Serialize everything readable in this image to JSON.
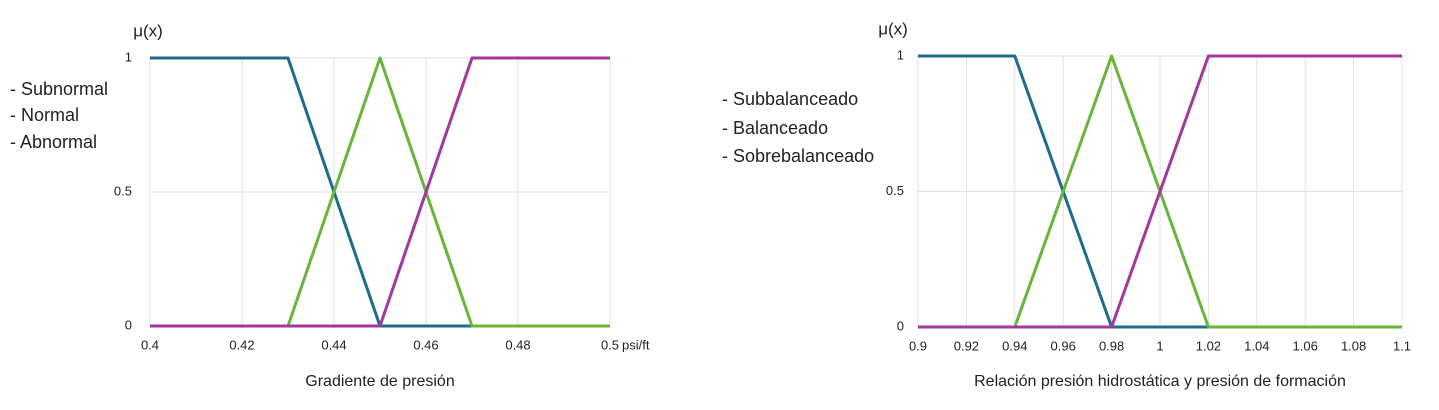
{
  "chart_data": [
    {
      "type": "line",
      "y_label": "μ(x)",
      "x_unit": "psi/ft",
      "x_label": "Gradiente de presión",
      "xlim": [
        0.4,
        0.5
      ],
      "xticks": [
        0.4,
        0.42,
        0.44,
        0.46,
        0.48,
        0.5
      ],
      "ylim": [
        0,
        1
      ],
      "yticks": [
        0,
        0.5,
        1
      ],
      "grid": true,
      "series": [
        {
          "name": "- Subnormal",
          "color": "#1f6b8a",
          "x": [
            0.4,
            0.43,
            0.45,
            0.5
          ],
          "values": [
            1,
            1,
            0,
            0
          ]
        },
        {
          "name": "- Normal",
          "color": "#6ab43a",
          "x": [
            0.4,
            0.43,
            0.45,
            0.47,
            0.5
          ],
          "values": [
            0,
            0,
            1,
            0,
            0
          ]
        },
        {
          "name": "- Abnormal",
          "color": "#a3369f",
          "x": [
            0.4,
            0.45,
            0.47,
            0.5
          ],
          "values": [
            0,
            0,
            1,
            1
          ]
        }
      ]
    },
    {
      "type": "line",
      "y_label": "μ(x)",
      "x_label": "Relación presión hidrostática y presión de formación",
      "xlim": [
        0.9,
        1.1
      ],
      "xticks": [
        0.9,
        0.92,
        0.94,
        0.96,
        0.98,
        1,
        1.02,
        1.04,
        1.06,
        1.08,
        1.1
      ],
      "ylim": [
        0,
        1
      ],
      "yticks": [
        0,
        0.5,
        1
      ],
      "grid": true,
      "series": [
        {
          "name": "- Subbalanceado",
          "color": "#1f6b8a",
          "x": [
            0.9,
            0.94,
            0.98,
            1.1
          ],
          "values": [
            1,
            1,
            0,
            0
          ]
        },
        {
          "name": "- Balanceado",
          "color": "#6ab43a",
          "x": [
            0.9,
            0.94,
            0.98,
            1.02,
            1.1
          ],
          "values": [
            0,
            0,
            1,
            0,
            0
          ]
        },
        {
          "name": "- Sobrebalanceado",
          "color": "#a3369f",
          "x": [
            0.9,
            0.98,
            1.02,
            1.1
          ],
          "values": [
            0,
            0,
            1,
            1
          ]
        }
      ]
    }
  ]
}
